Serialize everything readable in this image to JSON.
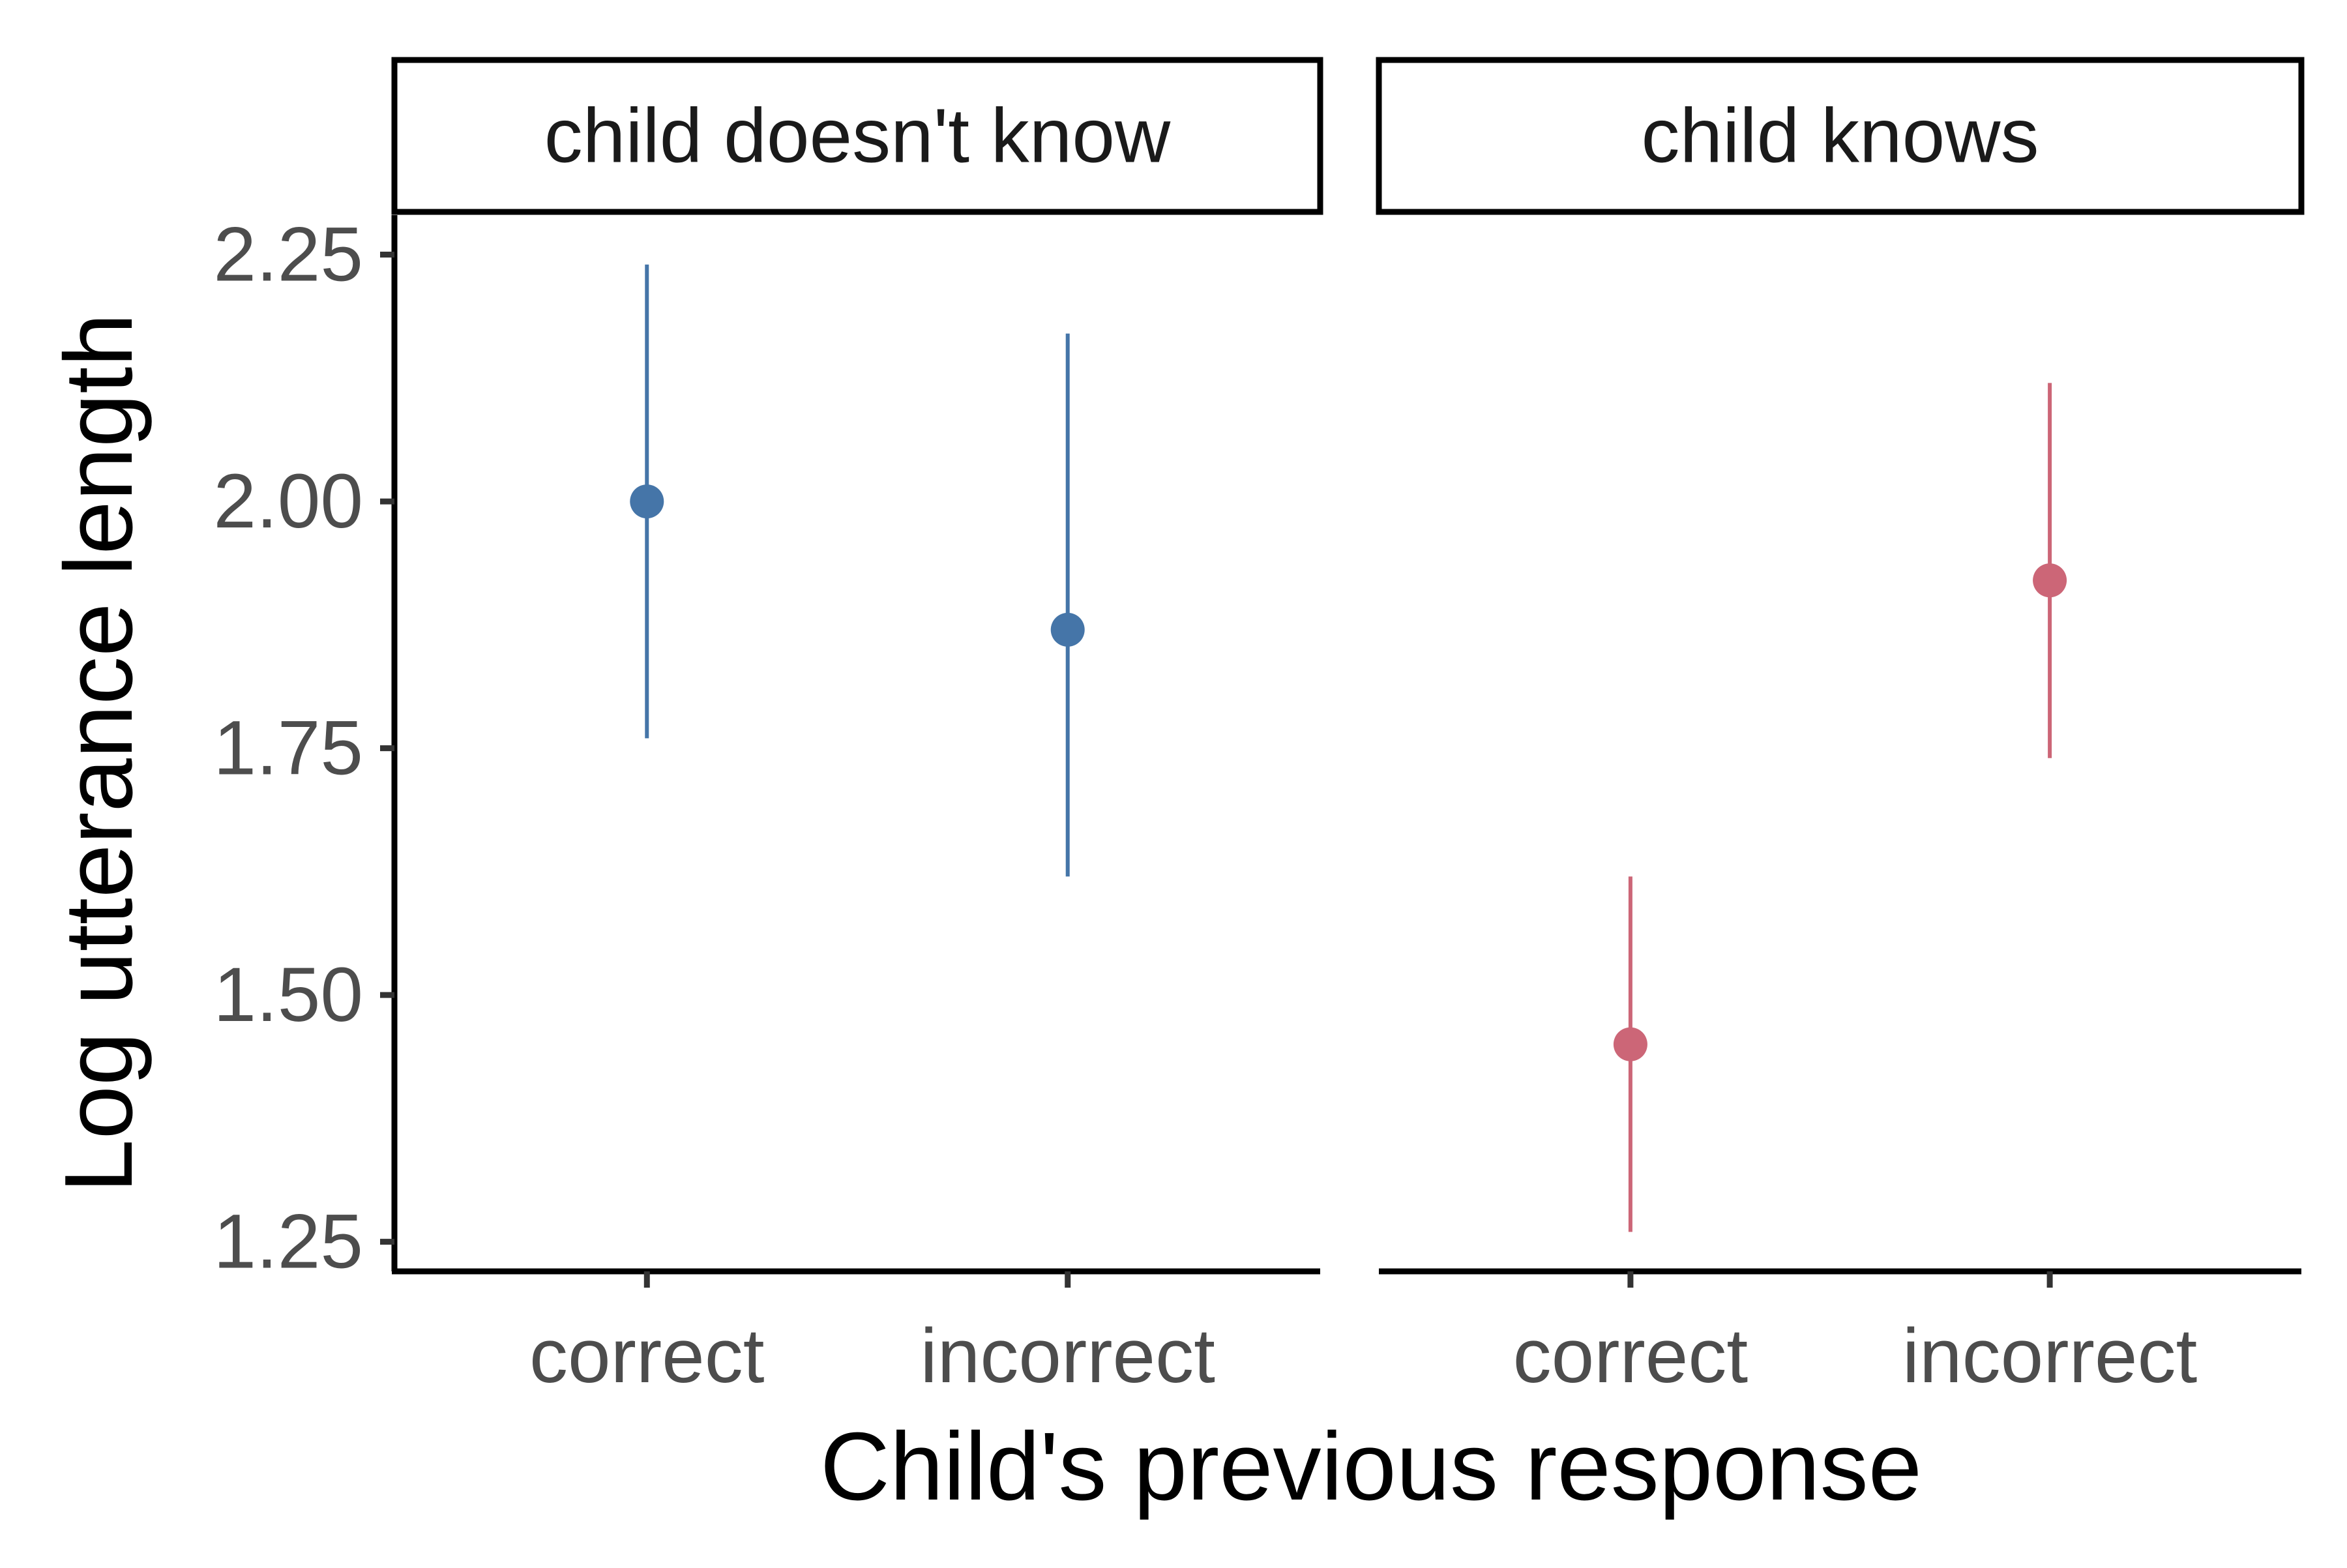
{
  "chart_data": {
    "type": "scatter",
    "subtype": "pointrange",
    "xlabel": "Child's previous response",
    "ylabel": "Log utterance length",
    "ylim": [
      1.22,
      2.29
    ],
    "yticks": [
      1.25,
      1.5,
      1.75,
      2.0,
      2.25
    ],
    "ytick_labels": [
      "1.25",
      "1.50",
      "1.75",
      "2.00",
      "2.25"
    ],
    "categories": [
      "correct",
      "incorrect"
    ],
    "grid": false,
    "legend": "none",
    "facets": [
      {
        "label": "child doesn't know",
        "color": "#4575a8",
        "points": [
          {
            "x": "correct",
            "y": 2.0,
            "ymin": 1.76,
            "ymax": 2.24
          },
          {
            "x": "incorrect",
            "y": 1.87,
            "ymin": 1.62,
            "ymax": 2.17
          }
        ]
      },
      {
        "label": "child knows",
        "color": "#cc6677",
        "points": [
          {
            "x": "correct",
            "y": 1.45,
            "ymin": 1.26,
            "ymax": 1.62
          },
          {
            "x": "incorrect",
            "y": 1.92,
            "ymin": 1.74,
            "ymax": 2.12
          }
        ]
      }
    ]
  }
}
